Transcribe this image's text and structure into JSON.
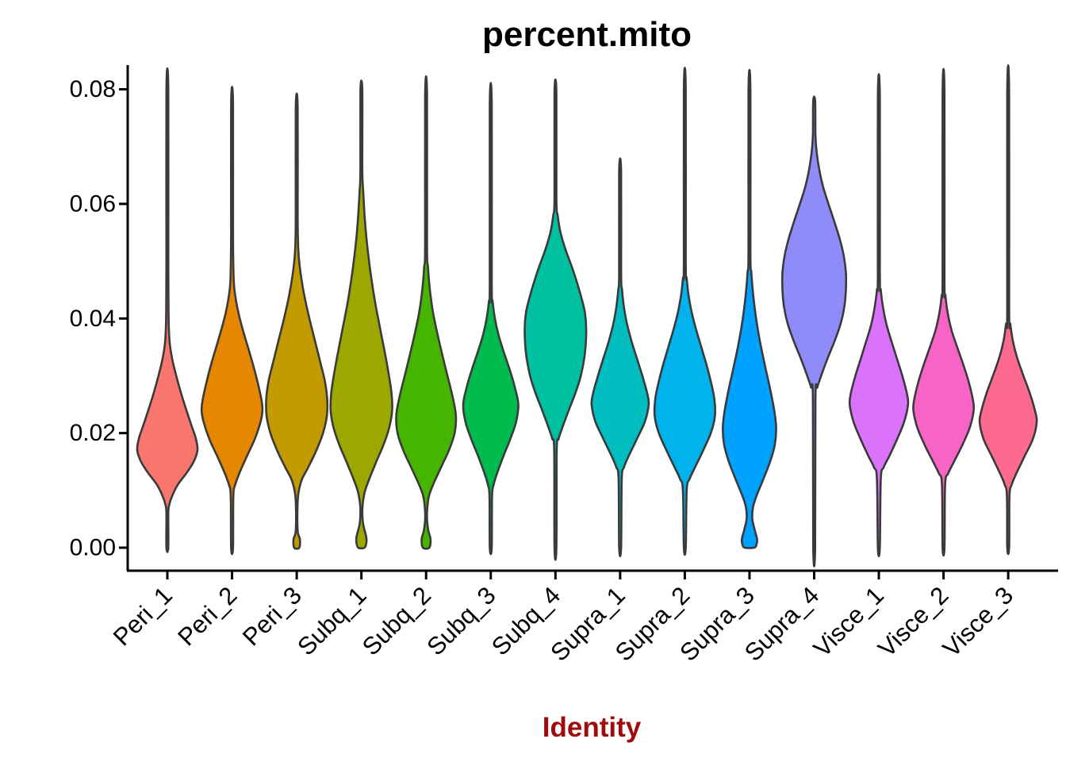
{
  "title": "percent.mito",
  "x_axis": {
    "title": "Identity",
    "title_color": "#A00B0B",
    "label_rotation_deg": -45
  },
  "y_axis": {
    "tick_labels": [
      "0.00",
      "0.02",
      "0.04",
      "0.06",
      "0.08"
    ],
    "tick_values": [
      0.0,
      0.02,
      0.04,
      0.06,
      0.08
    ]
  },
  "style": {
    "outline_color": "#3A3A3A",
    "axis_color": "#000000",
    "background": "#FFFFFF"
  },
  "chart_data": {
    "type": "violin",
    "title": "percent.mito",
    "xlabel": "Identity",
    "ylabel": "",
    "ylim": [
      0,
      0.08
    ],
    "grid": false,
    "legend": "none",
    "categories": [
      "Peri_1",
      "Peri_2",
      "Peri_3",
      "Subq_1",
      "Subq_2",
      "Subq_3",
      "Subq_4",
      "Supra_1",
      "Supra_2",
      "Supra_3",
      "Supra_4",
      "Visce_1",
      "Visce_2",
      "Visce_3"
    ],
    "series": [
      {
        "name": "Peri_1",
        "color": "#F8766D",
        "max_value": 0.0799,
        "profile": [
          [
            0.0799,
            0.03
          ],
          [
            0.05,
            0.03
          ],
          [
            0.04,
            0.04
          ],
          [
            0.036,
            0.07
          ],
          [
            0.033,
            0.15
          ],
          [
            0.03,
            0.28
          ],
          [
            0.027,
            0.43
          ],
          [
            0.024,
            0.6
          ],
          [
            0.021,
            0.78
          ],
          [
            0.019,
            0.9
          ],
          [
            0.017,
            0.95
          ],
          [
            0.015,
            0.83
          ],
          [
            0.013,
            0.6
          ],
          [
            0.011,
            0.33
          ],
          [
            0.009,
            0.15
          ],
          [
            0.0075,
            0.06
          ],
          [
            0.006,
            0.03
          ],
          [
            0.0,
            0.03
          ]
        ]
      },
      {
        "name": "Peri_2",
        "color": "#E58700",
        "max_value": 0.0776,
        "profile": [
          [
            0.0776,
            0.03
          ],
          [
            0.055,
            0.03
          ],
          [
            0.047,
            0.05
          ],
          [
            0.044,
            0.1
          ],
          [
            0.041,
            0.2
          ],
          [
            0.038,
            0.34
          ],
          [
            0.035,
            0.5
          ],
          [
            0.032,
            0.66
          ],
          [
            0.029,
            0.8
          ],
          [
            0.026,
            0.92
          ],
          [
            0.024,
            0.96
          ],
          [
            0.022,
            0.9
          ],
          [
            0.019,
            0.72
          ],
          [
            0.016,
            0.47
          ],
          [
            0.013,
            0.23
          ],
          [
            0.011,
            0.1
          ],
          [
            0.009,
            0.04
          ],
          [
            0.0,
            0.03
          ]
        ]
      },
      {
        "name": "Peri_3",
        "color": "#C19B00",
        "max_value": 0.0769,
        "profile": [
          [
            0.0769,
            0.03
          ],
          [
            0.058,
            0.03
          ],
          [
            0.052,
            0.05
          ],
          [
            0.048,
            0.12
          ],
          [
            0.044,
            0.24
          ],
          [
            0.04,
            0.4
          ],
          [
            0.036,
            0.58
          ],
          [
            0.032,
            0.76
          ],
          [
            0.029,
            0.89
          ],
          [
            0.026,
            0.96
          ],
          [
            0.023,
            0.95
          ],
          [
            0.02,
            0.83
          ],
          [
            0.017,
            0.62
          ],
          [
            0.014,
            0.36
          ],
          [
            0.012,
            0.17
          ],
          [
            0.01,
            0.07
          ],
          [
            0.008,
            0.03
          ],
          [
            0.003,
            0.03
          ],
          [
            0.0015,
            0.1
          ],
          [
            0.0,
            0.08
          ]
        ]
      },
      {
        "name": "Subq_1",
        "color": "#9CA700",
        "max_value": 0.0798,
        "profile": [
          [
            0.0798,
            0.03
          ],
          [
            0.066,
            0.03
          ],
          [
            0.062,
            0.06
          ],
          [
            0.058,
            0.1
          ],
          [
            0.054,
            0.16
          ],
          [
            0.05,
            0.24
          ],
          [
            0.046,
            0.34
          ],
          [
            0.042,
            0.46
          ],
          [
            0.038,
            0.6
          ],
          [
            0.034,
            0.74
          ],
          [
            0.03,
            0.87
          ],
          [
            0.027,
            0.95
          ],
          [
            0.024,
            0.97
          ],
          [
            0.021,
            0.88
          ],
          [
            0.018,
            0.7
          ],
          [
            0.015,
            0.47
          ],
          [
            0.012,
            0.25
          ],
          [
            0.01,
            0.12
          ],
          [
            0.008,
            0.05
          ],
          [
            0.006,
            0.03
          ],
          [
            0.004,
            0.06
          ],
          [
            0.002,
            0.15
          ],
          [
            0.001,
            0.16
          ],
          [
            0.0,
            0.1
          ]
        ]
      },
      {
        "name": "Subq_2",
        "color": "#45B500",
        "max_value": 0.079,
        "profile": [
          [
            0.079,
            0.03
          ],
          [
            0.053,
            0.03
          ],
          [
            0.049,
            0.06
          ],
          [
            0.045,
            0.12
          ],
          [
            0.041,
            0.22
          ],
          [
            0.037,
            0.37
          ],
          [
            0.033,
            0.54
          ],
          [
            0.029,
            0.72
          ],
          [
            0.026,
            0.85
          ],
          [
            0.023,
            0.94
          ],
          [
            0.02,
            0.9
          ],
          [
            0.017,
            0.72
          ],
          [
            0.014,
            0.47
          ],
          [
            0.011,
            0.22
          ],
          [
            0.009,
            0.09
          ],
          [
            0.007,
            0.04
          ],
          [
            0.005,
            0.03
          ],
          [
            0.003,
            0.07
          ],
          [
            0.0015,
            0.14
          ],
          [
            0.0,
            0.1
          ]
        ]
      },
      {
        "name": "Subq_3",
        "color": "#00BB4E",
        "max_value": 0.0772,
        "profile": [
          [
            0.0772,
            0.03
          ],
          [
            0.046,
            0.03
          ],
          [
            0.043,
            0.06
          ],
          [
            0.04,
            0.13
          ],
          [
            0.037,
            0.25
          ],
          [
            0.034,
            0.42
          ],
          [
            0.031,
            0.6
          ],
          [
            0.028,
            0.76
          ],
          [
            0.025,
            0.87
          ],
          [
            0.022,
            0.8
          ],
          [
            0.019,
            0.62
          ],
          [
            0.016,
            0.4
          ],
          [
            0.013,
            0.2
          ],
          [
            0.011,
            0.09
          ],
          [
            0.009,
            0.04
          ],
          [
            0.0,
            0.03
          ]
        ]
      },
      {
        "name": "Subq_4",
        "color": "#00C0A2",
        "max_value": 0.0794,
        "profile": [
          [
            0.0794,
            0.03
          ],
          [
            0.061,
            0.03
          ],
          [
            0.058,
            0.07
          ],
          [
            0.055,
            0.16
          ],
          [
            0.052,
            0.32
          ],
          [
            0.048,
            0.58
          ],
          [
            0.044,
            0.8
          ],
          [
            0.041,
            0.93
          ],
          [
            0.038,
            0.97
          ],
          [
            0.034,
            0.93
          ],
          [
            0.03,
            0.8
          ],
          [
            0.027,
            0.63
          ],
          [
            0.024,
            0.42
          ],
          [
            0.021,
            0.22
          ],
          [
            0.019,
            0.1
          ],
          [
            0.017,
            0.04
          ],
          [
            0.0,
            0.03
          ]
        ]
      },
      {
        "name": "Supra_1",
        "color": "#00BDBF",
        "max_value": 0.0657,
        "profile": [
          [
            0.0657,
            0.03
          ],
          [
            0.048,
            0.03
          ],
          [
            0.045,
            0.06
          ],
          [
            0.042,
            0.12
          ],
          [
            0.039,
            0.22
          ],
          [
            0.036,
            0.36
          ],
          [
            0.033,
            0.53
          ],
          [
            0.03,
            0.7
          ],
          [
            0.027,
            0.85
          ],
          [
            0.025,
            0.9
          ],
          [
            0.022,
            0.78
          ],
          [
            0.019,
            0.53
          ],
          [
            0.016,
            0.27
          ],
          [
            0.014,
            0.12
          ],
          [
            0.012,
            0.05
          ],
          [
            0.0,
            0.03
          ]
        ]
      },
      {
        "name": "Supra_2",
        "color": "#00B3EC",
        "max_value": 0.08,
        "profile": [
          [
            0.08,
            0.03
          ],
          [
            0.05,
            0.03
          ],
          [
            0.047,
            0.06
          ],
          [
            0.044,
            0.12
          ],
          [
            0.041,
            0.22
          ],
          [
            0.038,
            0.36
          ],
          [
            0.035,
            0.52
          ],
          [
            0.032,
            0.68
          ],
          [
            0.029,
            0.82
          ],
          [
            0.026,
            0.93
          ],
          [
            0.023,
            0.95
          ],
          [
            0.02,
            0.82
          ],
          [
            0.017,
            0.58
          ],
          [
            0.014,
            0.32
          ],
          [
            0.012,
            0.15
          ],
          [
            0.01,
            0.06
          ],
          [
            0.0,
            0.03
          ]
        ]
      },
      {
        "name": "Supra_3",
        "color": "#00A2FF",
        "max_value": 0.0799,
        "profile": [
          [
            0.0799,
            0.03
          ],
          [
            0.052,
            0.03
          ],
          [
            0.048,
            0.06
          ],
          [
            0.044,
            0.12
          ],
          [
            0.04,
            0.21
          ],
          [
            0.036,
            0.33
          ],
          [
            0.032,
            0.48
          ],
          [
            0.028,
            0.64
          ],
          [
            0.024,
            0.78
          ],
          [
            0.021,
            0.84
          ],
          [
            0.018,
            0.8
          ],
          [
            0.015,
            0.65
          ],
          [
            0.012,
            0.44
          ],
          [
            0.009,
            0.22
          ],
          [
            0.007,
            0.11
          ],
          [
            0.005,
            0.09
          ],
          [
            0.003,
            0.17
          ],
          [
            0.0015,
            0.24
          ],
          [
            0.0005,
            0.22
          ],
          [
            0.0,
            0.15
          ]
        ]
      },
      {
        "name": "Supra_4",
        "color": "#8F8CFA",
        "max_value": 0.078,
        "profile": [
          [
            0.078,
            0.03
          ],
          [
            0.072,
            0.04
          ],
          [
            0.069,
            0.08
          ],
          [
            0.066,
            0.16
          ],
          [
            0.063,
            0.28
          ],
          [
            0.06,
            0.45
          ],
          [
            0.057,
            0.63
          ],
          [
            0.054,
            0.8
          ],
          [
            0.051,
            0.93
          ],
          [
            0.048,
            1.0
          ],
          [
            0.045,
            1.0
          ],
          [
            0.042,
            0.95
          ],
          [
            0.039,
            0.83
          ],
          [
            0.036,
            0.64
          ],
          [
            0.033,
            0.42
          ],
          [
            0.03,
            0.22
          ],
          [
            0.028,
            0.1
          ],
          [
            0.026,
            0.04
          ],
          [
            0.0,
            0.03
          ]
        ]
      },
      {
        "name": "Visce_1",
        "color": "#DA72FB",
        "max_value": 0.0788,
        "profile": [
          [
            0.0788,
            0.03
          ],
          [
            0.048,
            0.03
          ],
          [
            0.045,
            0.06
          ],
          [
            0.042,
            0.13
          ],
          [
            0.039,
            0.24
          ],
          [
            0.036,
            0.4
          ],
          [
            0.033,
            0.57
          ],
          [
            0.03,
            0.74
          ],
          [
            0.027,
            0.88
          ],
          [
            0.025,
            0.92
          ],
          [
            0.022,
            0.8
          ],
          [
            0.019,
            0.58
          ],
          [
            0.016,
            0.33
          ],
          [
            0.014,
            0.15
          ],
          [
            0.012,
            0.06
          ],
          [
            0.0,
            0.03
          ]
        ]
      },
      {
        "name": "Visce_2",
        "color": "#F863C6",
        "max_value": 0.0795,
        "profile": [
          [
            0.0795,
            0.03
          ],
          [
            0.047,
            0.03
          ],
          [
            0.044,
            0.06
          ],
          [
            0.041,
            0.13
          ],
          [
            0.038,
            0.25
          ],
          [
            0.035,
            0.43
          ],
          [
            0.032,
            0.62
          ],
          [
            0.029,
            0.79
          ],
          [
            0.026,
            0.92
          ],
          [
            0.024,
            0.95
          ],
          [
            0.021,
            0.83
          ],
          [
            0.018,
            0.6
          ],
          [
            0.015,
            0.33
          ],
          [
            0.013,
            0.15
          ],
          [
            0.011,
            0.05
          ],
          [
            0.0,
            0.03
          ]
        ]
      },
      {
        "name": "Visce_3",
        "color": "#FD6A90",
        "max_value": 0.0795,
        "profile": [
          [
            0.0795,
            0.03
          ],
          [
            0.042,
            0.03
          ],
          [
            0.039,
            0.07
          ],
          [
            0.036,
            0.15
          ],
          [
            0.033,
            0.29
          ],
          [
            0.03,
            0.48
          ],
          [
            0.027,
            0.68
          ],
          [
            0.024,
            0.84
          ],
          [
            0.022,
            0.9
          ],
          [
            0.019,
            0.78
          ],
          [
            0.016,
            0.52
          ],
          [
            0.013,
            0.26
          ],
          [
            0.011,
            0.11
          ],
          [
            0.009,
            0.04
          ],
          [
            0.0,
            0.03
          ]
        ]
      }
    ]
  }
}
